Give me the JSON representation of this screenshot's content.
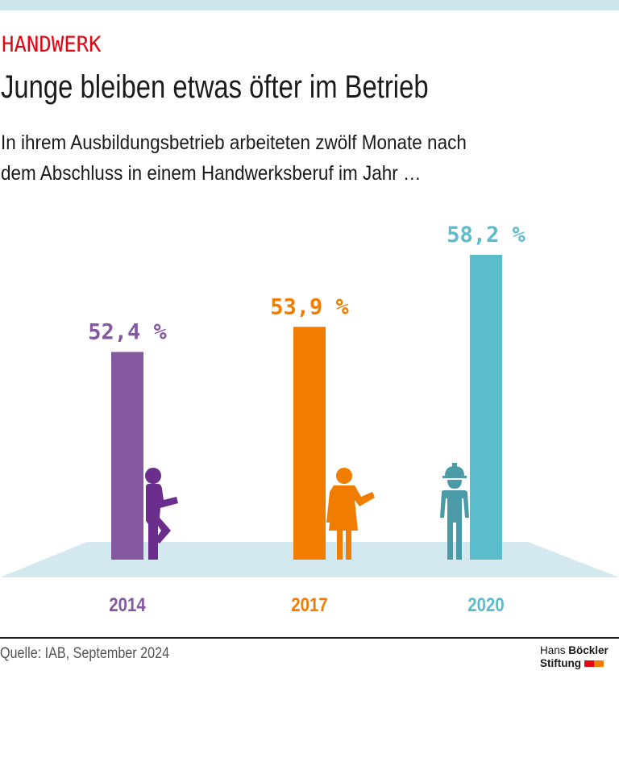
{
  "header": {
    "kicker": "HANDWERK",
    "title": "Junge bleiben etwas öfter im Betrieb",
    "subtitle_lines": [
      "In ihrem Ausbildungsbetrieb arbeiteten zwölf Monate nach",
      "dem Abschluss in einem Handwerksberuf im Jahr …"
    ]
  },
  "chart_data": {
    "type": "bar",
    "title": "Junge bleiben etwas öfter im Betrieb",
    "categories": [
      "2014",
      "2017",
      "2020"
    ],
    "values": [
      52.4,
      53.9,
      58.2
    ],
    "value_labels": [
      "52,4 %",
      "53,9 %",
      "58,2 %"
    ],
    "unit": "%",
    "colors": [
      "#8457a0",
      "#f07d00",
      "#5bbccc"
    ],
    "figure_colors": [
      "#6b2e8c",
      "#f07d00",
      "#4a9aa8"
    ],
    "figures": [
      "leaning-man-icon",
      "woman-icon",
      "construction-worker-icon"
    ],
    "xlabel": "",
    "ylabel": "",
    "grid": false,
    "legend": "none"
  },
  "footer": {
    "source": "Quelle: IAB, September 2024",
    "logo_line1_light": "Hans ",
    "logo_line1_bold": "Böckler",
    "logo_line2": "Stiftung",
    "logo_colors": [
      "#e30613",
      "#f07d00"
    ]
  }
}
